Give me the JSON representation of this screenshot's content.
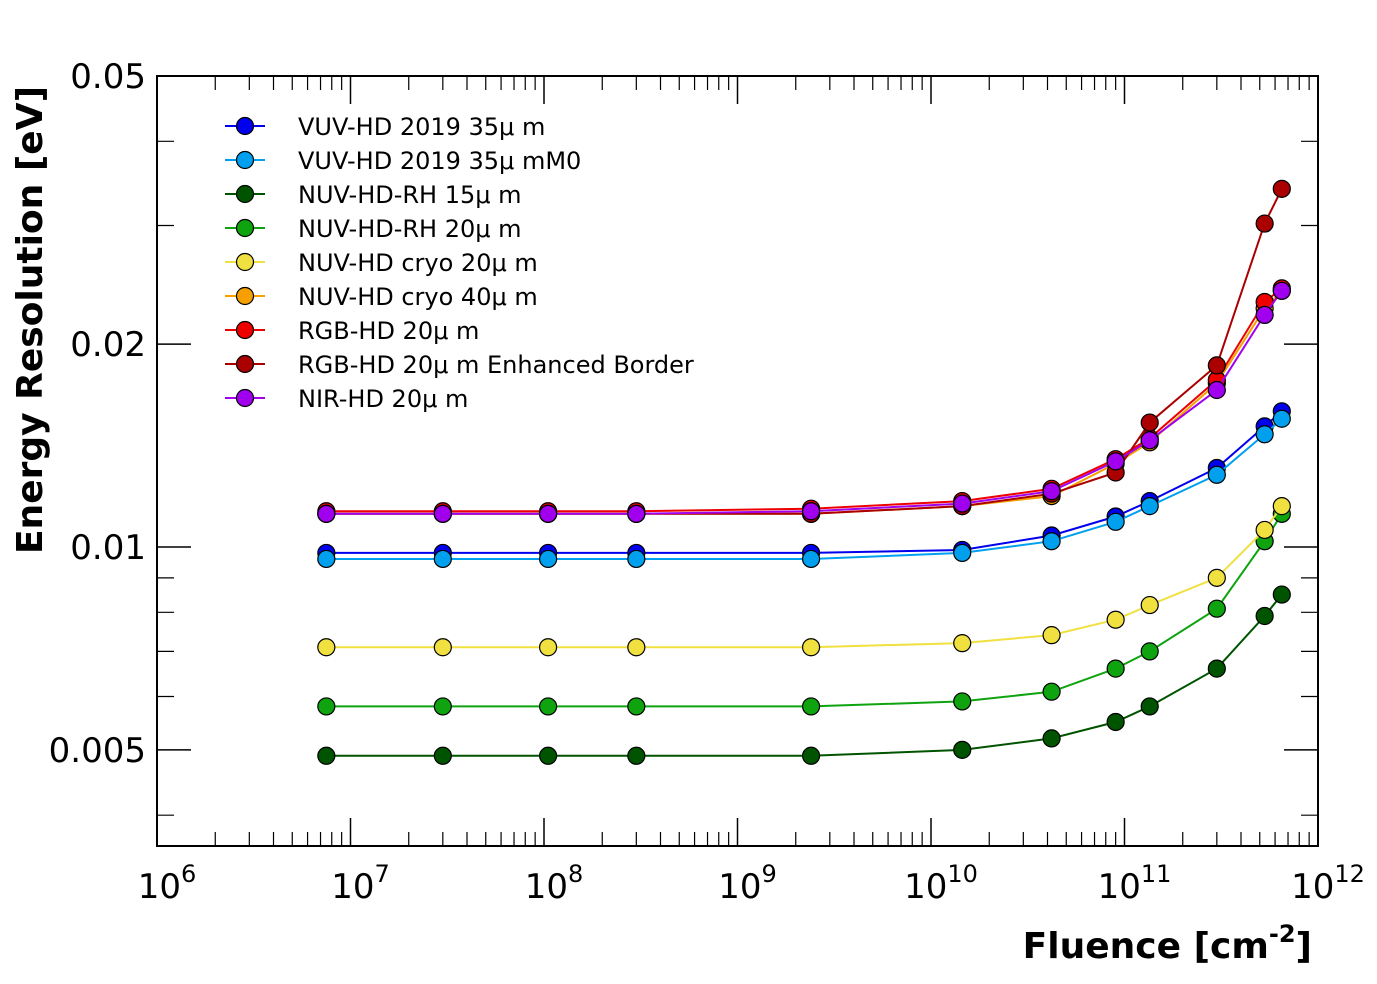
{
  "chart_data": {
    "type": "scatter",
    "title": "",
    "xlabel": "Fluence [cm",
    "xlabel_sup": "-2",
    "xlabel_end": "]",
    "ylabel": "Energy Resolution [eV]",
    "x_scale": "log",
    "y_scale": "log",
    "xlim": [
      1000000,
      1000000000000
    ],
    "ylim": [
      0.0036,
      0.05
    ],
    "grid": false,
    "legend_position": "top-left",
    "x_ticks": [
      {
        "base": "10",
        "exp": "6",
        "value": 1000000
      },
      {
        "base": "10",
        "exp": "7",
        "value": 10000000
      },
      {
        "base": "10",
        "exp": "8",
        "value": 100000000
      },
      {
        "base": "10",
        "exp": "9",
        "value": 1000000000
      },
      {
        "base": "10",
        "exp": "10",
        "value": 10000000000
      },
      {
        "base": "10",
        "exp": "11",
        "value": 100000000000
      },
      {
        "base": "10",
        "exp": "12",
        "value": 1000000000000
      }
    ],
    "y_ticks": [
      {
        "label": "0.005",
        "value": 0.005
      },
      {
        "label": "0.01",
        "value": 0.01
      },
      {
        "label": "0.02",
        "value": 0.02
      },
      {
        "label": "0.05",
        "value": 0.05
      }
    ],
    "x": [
      7500000,
      30000000,
      105000000,
      300000000,
      2400000000,
      14500000000,
      42000000000,
      90000000000,
      135000000000,
      300000000000,
      530000000000,
      650000000000
    ],
    "series": [
      {
        "name": "VUV-HD 2019 35μ m",
        "color": "#0000ee",
        "values": [
          0.0098,
          0.0098,
          0.0098,
          0.0098,
          0.0098,
          0.0099,
          0.0104,
          0.0111,
          0.0117,
          0.0131,
          0.0151,
          0.0159
        ]
      },
      {
        "name": "VUV-HD 2019 35μ mM0",
        "color": "#00a0ee",
        "values": [
          0.0096,
          0.0096,
          0.0096,
          0.0096,
          0.0096,
          0.0098,
          0.0102,
          0.0109,
          0.0115,
          0.0128,
          0.0147,
          0.0155
        ]
      },
      {
        "name": "NUV-HD-RH 15μ m",
        "color": "#005400",
        "values": [
          0.0049,
          0.0049,
          0.0049,
          0.0049,
          0.0049,
          0.005,
          0.0052,
          0.0055,
          0.0058,
          0.0066,
          0.0079,
          0.0085
        ]
      },
      {
        "name": "NUV-HD-RH 20μ m",
        "color": "#0fa30f",
        "values": [
          0.0058,
          0.0058,
          0.0058,
          0.0058,
          0.0058,
          0.0059,
          0.0061,
          0.0066,
          0.007,
          0.0081,
          0.0102,
          0.0112
        ]
      },
      {
        "name": "NUV-HD cryo 20μ m",
        "color": "#f0e040",
        "values": [
          0.0071,
          0.0071,
          0.0071,
          0.0071,
          0.0071,
          0.0072,
          0.0074,
          0.0078,
          0.0082,
          0.009,
          0.0106,
          0.0115
        ]
      },
      {
        "name": "NUV-HD cryo 40μ m",
        "color": "#f5a000",
        "values": [
          0.0112,
          0.0112,
          0.0112,
          0.0112,
          0.0112,
          0.0115,
          0.0119,
          0.0133,
          0.0143,
          0.0175,
          0.0226,
          0.024
        ]
      },
      {
        "name": "RGB-HD 20μ m",
        "color": "#ee0000",
        "values": [
          0.0113,
          0.0113,
          0.0113,
          0.0113,
          0.0114,
          0.0117,
          0.0122,
          0.0135,
          0.0145,
          0.0177,
          0.0231,
          0.0242
        ]
      },
      {
        "name": "RGB-HD 20μ m Enhanced Border",
        "color": "#aa0000",
        "values": [
          0.0112,
          0.0112,
          0.0112,
          0.0112,
          0.0112,
          0.0115,
          0.012,
          0.0129,
          0.0153,
          0.0186,
          0.0302,
          0.034
        ]
      },
      {
        "name": "NIR-HD 20μ m",
        "color": "#a000ee",
        "values": [
          0.0112,
          0.0112,
          0.0112,
          0.0112,
          0.0113,
          0.0116,
          0.0121,
          0.0134,
          0.0144,
          0.0171,
          0.0221,
          0.024
        ]
      }
    ]
  }
}
